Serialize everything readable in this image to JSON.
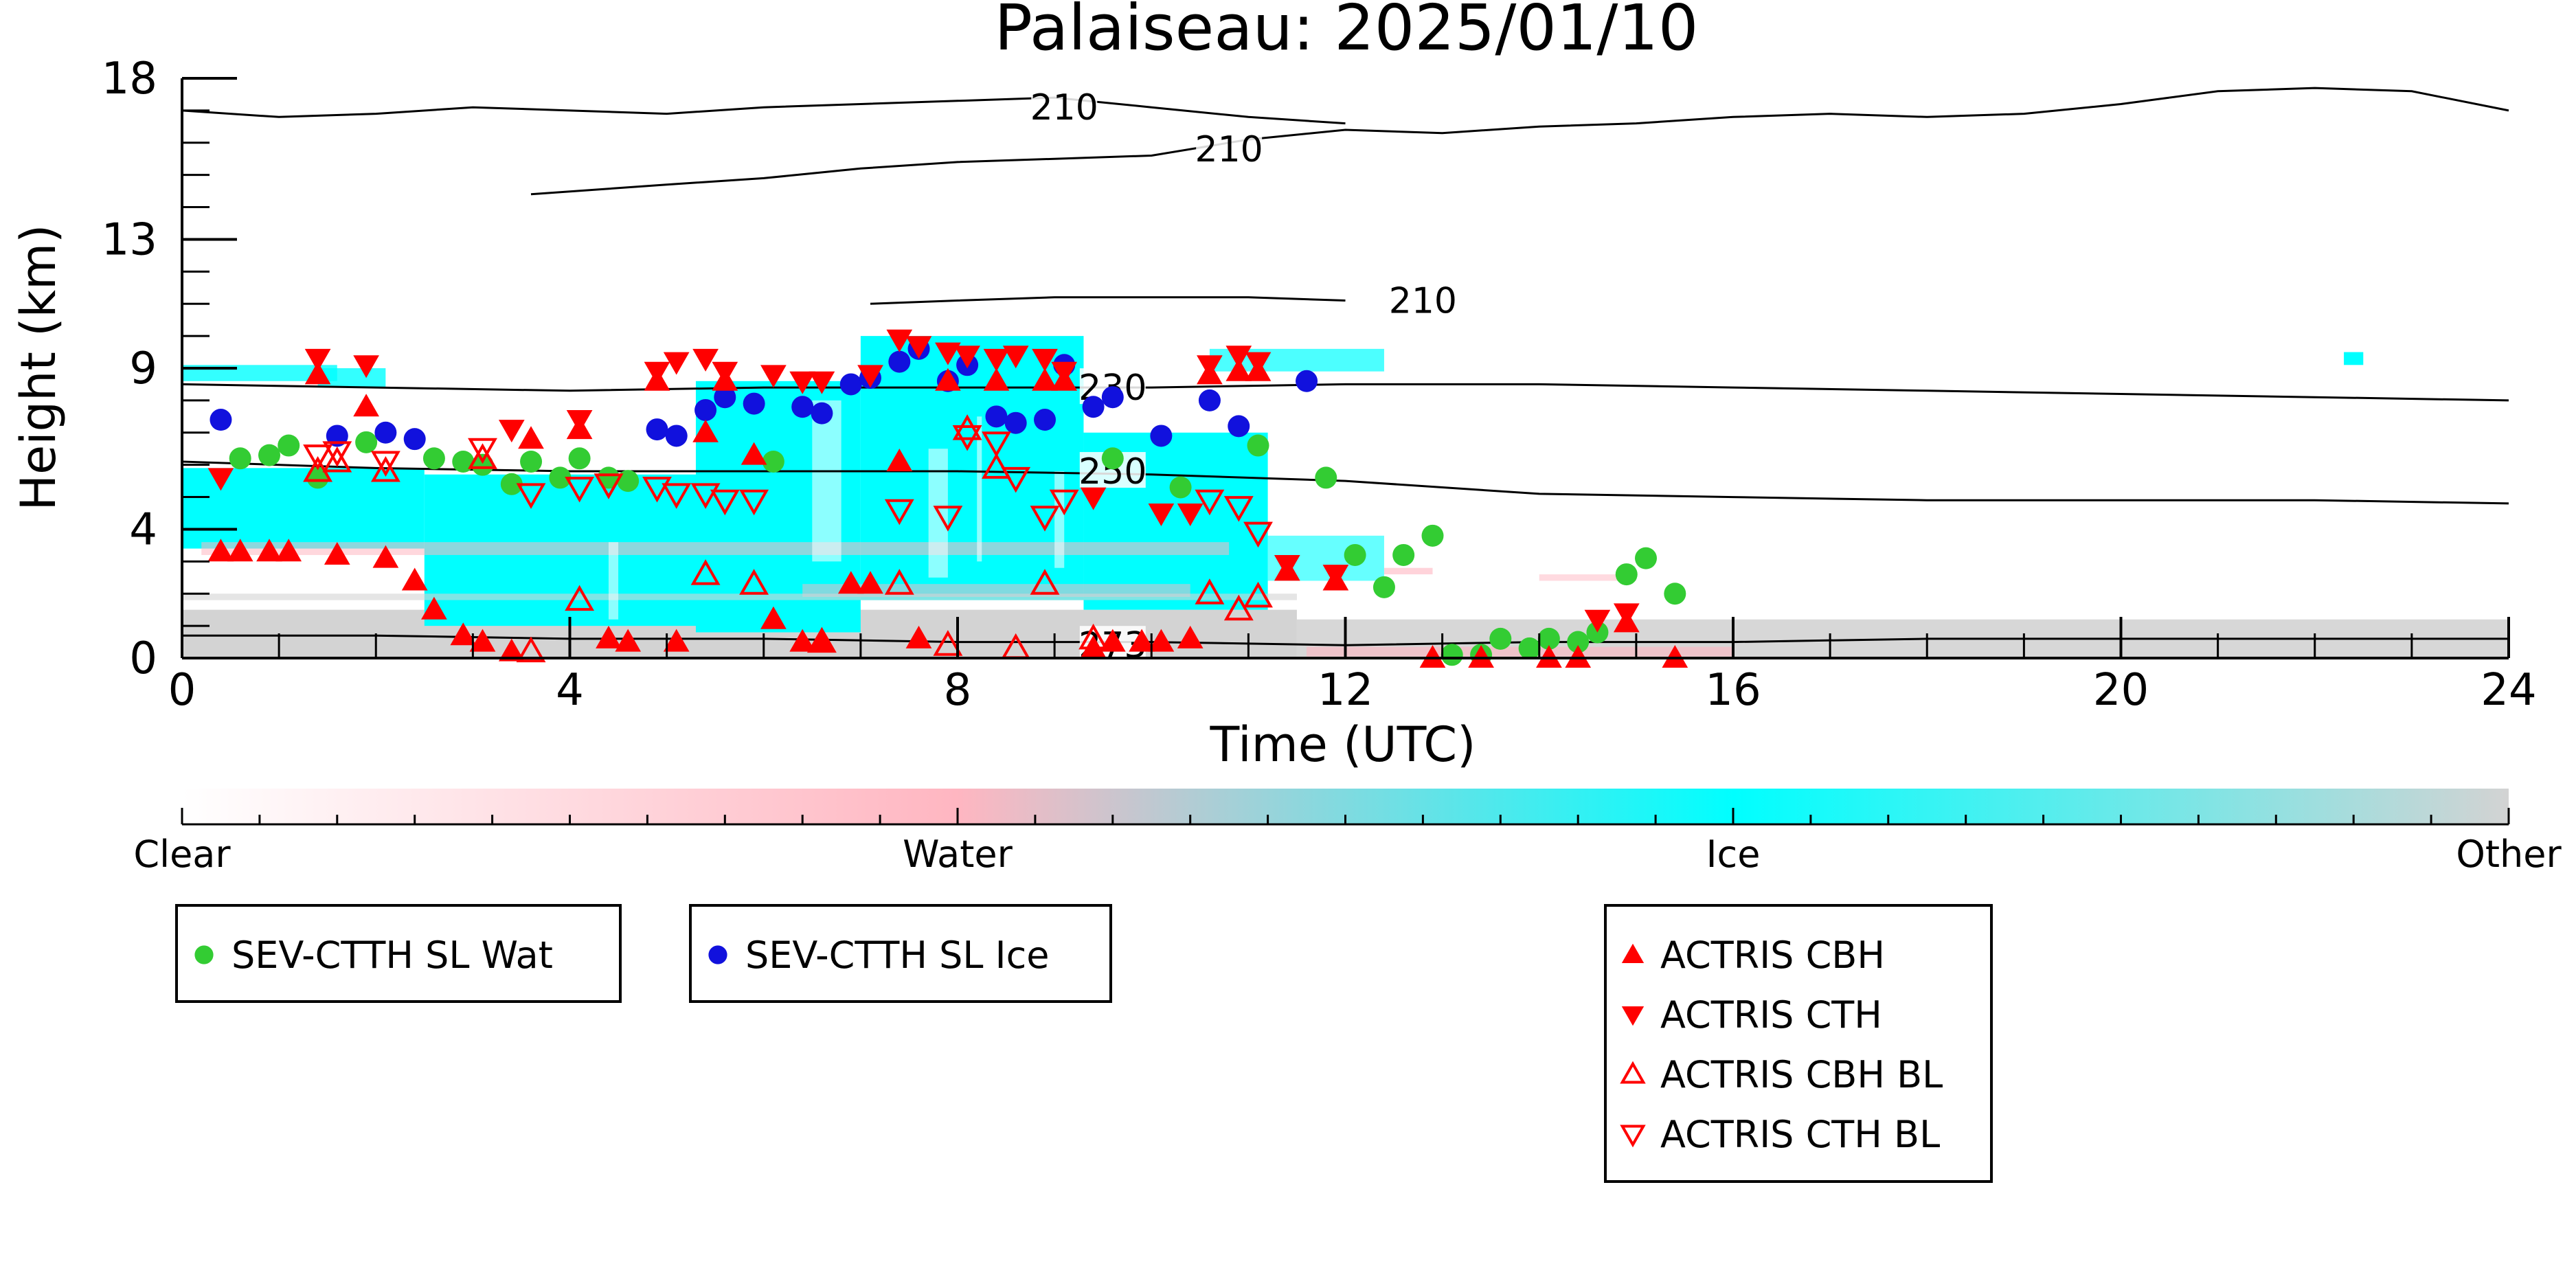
{
  "chart_data": {
    "type": "scatter",
    "title": "Palaiseau: 2025/01/10",
    "xlabel": "Time (UTC)",
    "ylabel": "Height (km)",
    "xlim": [
      0,
      24
    ],
    "ylim": [
      0,
      18
    ],
    "x_ticks": [
      "0",
      "4",
      "8",
      "12",
      "16",
      "20",
      "24"
    ],
    "x_tick_values": [
      0,
      4,
      8,
      12,
      16,
      20,
      24
    ],
    "y_ticks": [
      "0",
      "4",
      "9",
      "13",
      "18"
    ],
    "y_tick_values": [
      0,
      4,
      9,
      13,
      18
    ],
    "colorbar": {
      "labels": [
        "Clear",
        "Water",
        "Ice",
        "Other"
      ],
      "colors": [
        "#ffffff",
        "#ffb6c1",
        "#00ffff",
        "#d3d3d3"
      ]
    },
    "contours": [
      {
        "label": "210",
        "label_x": 9.1,
        "label_y": 17.1,
        "points": [
          [
            0,
            17.0
          ],
          [
            1,
            16.8
          ],
          [
            2,
            16.9
          ],
          [
            3,
            17.1
          ],
          [
            4,
            17.0
          ],
          [
            5,
            16.9
          ],
          [
            6,
            17.1
          ],
          [
            7,
            17.2
          ],
          [
            8,
            17.3
          ],
          [
            9,
            17.4
          ],
          [
            10,
            17.1
          ],
          [
            11,
            16.8
          ],
          [
            12,
            16.6
          ]
        ]
      },
      {
        "label": "210",
        "label_x": 10.8,
        "label_y": 15.8,
        "points": [
          [
            3.6,
            14.4
          ],
          [
            5,
            14.7
          ],
          [
            6,
            14.9
          ],
          [
            7,
            15.2
          ],
          [
            8,
            15.4
          ],
          [
            9,
            15.5
          ],
          [
            10,
            15.6
          ],
          [
            11,
            16.1
          ],
          [
            12,
            16.4
          ],
          [
            13,
            16.3
          ],
          [
            14,
            16.5
          ],
          [
            15,
            16.6
          ],
          [
            16,
            16.8
          ],
          [
            17,
            16.9
          ],
          [
            18,
            16.8
          ],
          [
            19,
            16.9
          ],
          [
            20,
            17.2
          ],
          [
            20.5,
            17.4
          ]
        ]
      },
      {
        "label": "",
        "label_x": null,
        "label_y": null,
        "points": [
          [
            20.5,
            17.4
          ],
          [
            21,
            17.6
          ],
          [
            22,
            17.7
          ],
          [
            23,
            17.6
          ],
          [
            24,
            17.0
          ]
        ]
      },
      {
        "label": "210",
        "label_x": 12.8,
        "label_y": 11.1,
        "points": [
          [
            7.1,
            11.0
          ],
          [
            8,
            11.1
          ],
          [
            9,
            11.2
          ],
          [
            10,
            11.2
          ],
          [
            11,
            11.2
          ],
          [
            12,
            11.1
          ]
        ]
      },
      {
        "label": "230",
        "label_x": 9.6,
        "label_y": 8.4,
        "points": [
          [
            0,
            8.5
          ],
          [
            2,
            8.4
          ],
          [
            4,
            8.3
          ],
          [
            6,
            8.4
          ],
          [
            8,
            8.4
          ],
          [
            10,
            8.4
          ],
          [
            12,
            8.5
          ],
          [
            14,
            8.5
          ],
          [
            16,
            8.4
          ],
          [
            18,
            8.3
          ],
          [
            20,
            8.2
          ],
          [
            22,
            8.1
          ],
          [
            24,
            8.0
          ]
        ]
      },
      {
        "label": "250",
        "label_x": 9.6,
        "label_y": 5.8,
        "points": [
          [
            0,
            6.1
          ],
          [
            2,
            5.9
          ],
          [
            4,
            5.8
          ],
          [
            6,
            5.8
          ],
          [
            8,
            5.8
          ],
          [
            10,
            5.7
          ],
          [
            12,
            5.5
          ],
          [
            14,
            5.1
          ],
          [
            16,
            5.0
          ],
          [
            18,
            4.9
          ],
          [
            20,
            4.9
          ],
          [
            22,
            4.9
          ],
          [
            24,
            4.8
          ]
        ]
      },
      {
        "label": "273",
        "label_x": 9.6,
        "label_y": 0.4,
        "points": [
          [
            0,
            0.7
          ],
          [
            2,
            0.7
          ],
          [
            4,
            0.6
          ],
          [
            6,
            0.6
          ],
          [
            8,
            0.5
          ],
          [
            10,
            0.5
          ],
          [
            12,
            0.4
          ],
          [
            14,
            0.5
          ],
          [
            16,
            0.5
          ],
          [
            18,
            0.6
          ],
          [
            20,
            0.6
          ],
          [
            22,
            0.6
          ],
          [
            24,
            0.6
          ]
        ]
      }
    ],
    "series": [
      {
        "name": "SEV-CTTH SL Wat",
        "color": "#33cc33",
        "marker": "circle",
        "points": [
          [
            0.6,
            6.2
          ],
          [
            0.9,
            6.3
          ],
          [
            1.1,
            6.6
          ],
          [
            1.4,
            5.6
          ],
          [
            1.9,
            6.7
          ],
          [
            2.6,
            6.2
          ],
          [
            2.9,
            6.1
          ],
          [
            3.1,
            6.0
          ],
          [
            3.4,
            5.4
          ],
          [
            3.6,
            6.1
          ],
          [
            3.9,
            5.6
          ],
          [
            4.1,
            6.2
          ],
          [
            4.4,
            5.6
          ],
          [
            4.6,
            5.5
          ],
          [
            6.1,
            6.1
          ],
          [
            9.6,
            6.2
          ],
          [
            10.3,
            5.3
          ],
          [
            11.1,
            6.6
          ],
          [
            11.8,
            5.6
          ],
          [
            12.1,
            3.2
          ],
          [
            12.4,
            2.2
          ],
          [
            12.6,
            3.2
          ],
          [
            12.9,
            3.8
          ],
          [
            13.1,
            0.1
          ],
          [
            13.4,
            0.1
          ],
          [
            13.6,
            0.6
          ],
          [
            13.9,
            0.3
          ],
          [
            14.1,
            0.6
          ],
          [
            14.4,
            0.5
          ],
          [
            14.6,
            0.8
          ],
          [
            14.9,
            2.6
          ],
          [
            15.1,
            3.1
          ],
          [
            15.4,
            2.0
          ]
        ]
      },
      {
        "name": "SEV-CTTH SL Ice",
        "color": "#1111dd",
        "marker": "circle",
        "points": [
          [
            0.4,
            7.4
          ],
          [
            1.6,
            6.9
          ],
          [
            2.1,
            7.0
          ],
          [
            2.4,
            6.8
          ],
          [
            4.9,
            7.1
          ],
          [
            5.1,
            6.9
          ],
          [
            5.4,
            7.7
          ],
          [
            5.6,
            8.1
          ],
          [
            5.9,
            7.9
          ],
          [
            6.4,
            7.8
          ],
          [
            6.6,
            7.6
          ],
          [
            6.9,
            8.5
          ],
          [
            7.1,
            8.7
          ],
          [
            7.4,
            9.2
          ],
          [
            7.6,
            9.6
          ],
          [
            7.9,
            8.6
          ],
          [
            8.1,
            9.1
          ],
          [
            8.4,
            7.5
          ],
          [
            8.6,
            7.3
          ],
          [
            8.9,
            7.4
          ],
          [
            9.1,
            9.1
          ],
          [
            9.4,
            7.8
          ],
          [
            9.6,
            8.1
          ],
          [
            10.1,
            6.9
          ],
          [
            10.6,
            8.0
          ],
          [
            10.9,
            7.2
          ],
          [
            11.6,
            8.6
          ]
        ]
      },
      {
        "name": "ACTRIS CBH",
        "color": "#ff0000",
        "marker": "triangle-up",
        "points": [
          [
            0.4,
            3.3
          ],
          [
            0.6,
            3.3
          ],
          [
            0.9,
            3.3
          ],
          [
            1.1,
            3.3
          ],
          [
            1.4,
            8.8
          ],
          [
            1.6,
            3.2
          ],
          [
            1.9,
            7.8
          ],
          [
            2.1,
            3.1
          ],
          [
            2.4,
            2.4
          ],
          [
            2.6,
            1.5
          ],
          [
            2.9,
            0.7
          ],
          [
            3.1,
            0.5
          ],
          [
            3.4,
            0.2
          ],
          [
            3.6,
            6.8
          ],
          [
            4.1,
            7.1
          ],
          [
            4.4,
            0.6
          ],
          [
            4.6,
            0.5
          ],
          [
            4.9,
            8.6
          ],
          [
            5.1,
            0.5
          ],
          [
            5.4,
            7.0
          ],
          [
            5.6,
            8.6
          ],
          [
            5.9,
            6.3
          ],
          [
            6.1,
            1.2
          ],
          [
            6.4,
            0.5
          ],
          [
            6.6,
            0.5
          ],
          [
            6.9,
            2.3
          ],
          [
            7.1,
            2.3
          ],
          [
            7.4,
            6.1
          ],
          [
            7.6,
            0.6
          ],
          [
            7.9,
            8.6
          ],
          [
            8.4,
            8.6
          ],
          [
            8.9,
            8.6
          ],
          [
            9.1,
            8.6
          ],
          [
            9.4,
            0.3
          ],
          [
            9.6,
            0.5
          ],
          [
            9.9,
            0.5
          ],
          [
            10.1,
            0.5
          ],
          [
            10.4,
            0.6
          ],
          [
            10.6,
            8.8
          ],
          [
            10.9,
            8.9
          ],
          [
            11.1,
            8.9
          ],
          [
            11.4,
            2.7
          ],
          [
            11.9,
            2.4
          ],
          [
            12.9,
            0.0
          ],
          [
            13.4,
            0.0
          ],
          [
            14.1,
            0.0
          ],
          [
            14.4,
            0.0
          ],
          [
            14.9,
            1.1
          ],
          [
            15.4,
            0.0
          ]
        ]
      },
      {
        "name": "ACTRIS CTH",
        "color": "#ff0000",
        "marker": "triangle-down",
        "points": [
          [
            0.4,
            5.6
          ],
          [
            1.4,
            9.3
          ],
          [
            1.9,
            9.1
          ],
          [
            3.4,
            7.1
          ],
          [
            4.1,
            7.4
          ],
          [
            4.9,
            8.9
          ],
          [
            5.1,
            9.2
          ],
          [
            5.4,
            9.3
          ],
          [
            5.6,
            8.9
          ],
          [
            6.1,
            8.8
          ],
          [
            6.4,
            8.6
          ],
          [
            6.6,
            8.6
          ],
          [
            7.1,
            8.8
          ],
          [
            7.4,
            9.9
          ],
          [
            7.6,
            9.7
          ],
          [
            7.9,
            9.5
          ],
          [
            8.1,
            9.4
          ],
          [
            8.4,
            9.3
          ],
          [
            8.6,
            9.4
          ],
          [
            8.9,
            9.3
          ],
          [
            9.1,
            8.9
          ],
          [
            9.4,
            5.0
          ],
          [
            10.1,
            4.5
          ],
          [
            10.4,
            4.5
          ],
          [
            10.6,
            9.1
          ],
          [
            10.9,
            9.4
          ],
          [
            11.1,
            9.2
          ],
          [
            11.4,
            2.9
          ],
          [
            11.9,
            2.6
          ],
          [
            14.6,
            1.2
          ],
          [
            14.9,
            1.4
          ]
        ]
      },
      {
        "name": "ACTRIS CBH BL",
        "color": "#ff0000",
        "marker": "triangle-up-open",
        "points": [
          [
            1.4,
            5.8
          ],
          [
            1.6,
            6.1
          ],
          [
            2.1,
            5.8
          ],
          [
            3.1,
            6.2
          ],
          [
            3.6,
            0.2
          ],
          [
            4.1,
            1.8
          ],
          [
            5.4,
            2.6
          ],
          [
            5.9,
            2.3
          ],
          [
            6.6,
            0.5
          ],
          [
            7.4,
            2.3
          ],
          [
            7.9,
            0.4
          ],
          [
            8.1,
            7.1
          ],
          [
            8.4,
            5.9
          ],
          [
            8.6,
            0.3
          ],
          [
            8.9,
            2.3
          ],
          [
            9.4,
            0.6
          ],
          [
            10.6,
            2.0
          ],
          [
            10.9,
            1.5
          ],
          [
            11.1,
            1.9
          ]
        ]
      },
      {
        "name": "ACTRIS CTH BL",
        "color": "#ff0000",
        "marker": "triangle-down-open",
        "points": [
          [
            1.4,
            6.3
          ],
          [
            1.6,
            6.4
          ],
          [
            2.1,
            6.1
          ],
          [
            3.1,
            6.5
          ],
          [
            3.6,
            5.1
          ],
          [
            4.1,
            5.3
          ],
          [
            4.4,
            5.4
          ],
          [
            4.9,
            5.3
          ],
          [
            5.1,
            5.1
          ],
          [
            5.4,
            5.1
          ],
          [
            5.6,
            4.9
          ],
          [
            5.9,
            4.9
          ],
          [
            7.4,
            4.6
          ],
          [
            7.9,
            4.4
          ],
          [
            8.1,
            6.9
          ],
          [
            8.4,
            6.7
          ],
          [
            8.6,
            5.6
          ],
          [
            8.9,
            4.4
          ],
          [
            9.1,
            4.9
          ],
          [
            10.6,
            4.9
          ],
          [
            10.9,
            4.7
          ],
          [
            11.1,
            3.9
          ]
        ]
      }
    ],
    "legends": [
      [
        "SEV-CTTH SL Wat"
      ],
      [
        "SEV-CTTH SL Ice"
      ],
      [
        "ACTRIS CBH",
        "ACTRIS CTH",
        "ACTRIS CBH BL",
        "ACTRIS CTH BL"
      ]
    ]
  }
}
